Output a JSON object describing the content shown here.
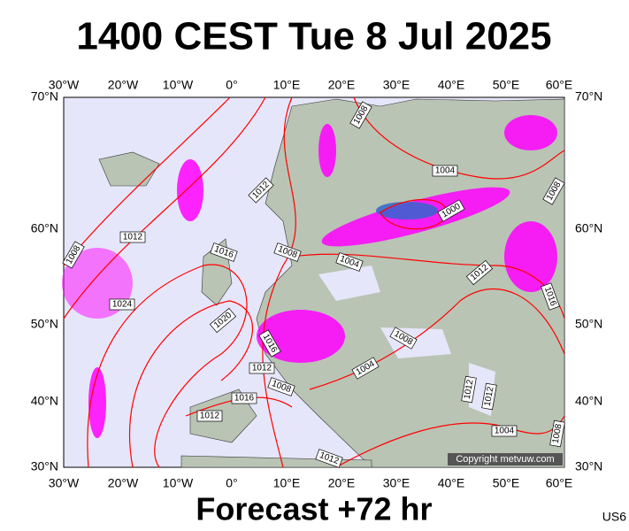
{
  "header": {
    "title": "1400 CEST Tue 8 Jul 2025"
  },
  "axes": {
    "longitudes": [
      "30°W",
      "20°W",
      "10°W",
      "0°",
      "10°E",
      "20°E",
      "30°E",
      "40°E",
      "50°E",
      "60°E"
    ],
    "latitudes": [
      "70°N",
      "60°N",
      "50°N",
      "40°N",
      "30°N"
    ]
  },
  "isobar_labels": [
    1008,
    1012,
    1004,
    1000,
    1008,
    1012,
    1016,
    1008,
    1008,
    1004,
    1012,
    1016,
    1024,
    1020,
    1016,
    1008,
    1012,
    1004,
    1008,
    1016,
    1012,
    1012,
    1012,
    1004,
    1008,
    1012
  ],
  "copyright": "Copyright metvuw.com",
  "footer": {
    "title": "Forecast +72 hr",
    "code": "US6"
  }
}
